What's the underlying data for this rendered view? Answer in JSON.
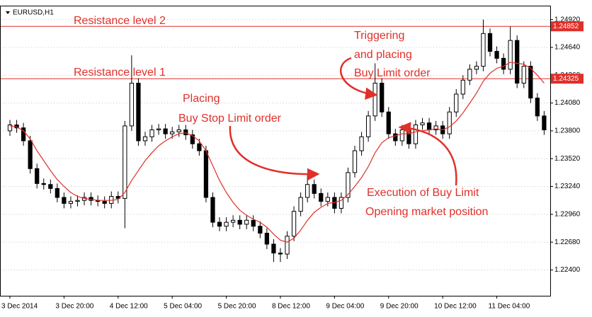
{
  "chart_data": {
    "type": "candlestick",
    "title": "EURUSD,H1",
    "categories": [
      "3 Dec 2014",
      null,
      null,
      null,
      null,
      null,
      null,
      null,
      "3 Dec 20:00",
      null,
      null,
      null,
      null,
      null,
      null,
      null,
      "4 Dec 12:00",
      null,
      null,
      null,
      null,
      null,
      null,
      null,
      "5 Dec 04:00",
      null,
      null,
      null,
      null,
      null,
      null,
      null,
      "5 Dec 20:00",
      null,
      null,
      null,
      null,
      null,
      null,
      null,
      "8 Dec 12:00",
      null,
      null,
      null,
      null,
      null,
      null,
      null,
      "9 Dec 04:00",
      null,
      null,
      null,
      null,
      null,
      null,
      null,
      "9 Dec 20:00",
      null,
      null,
      null,
      null,
      null,
      null,
      null,
      "10 Dec 12:00",
      null,
      null,
      null,
      null,
      null,
      null,
      null,
      "11 Dec 04:00",
      null,
      null,
      null,
      null,
      null,
      null,
      null
    ],
    "open": [
      1.238,
      1.2386,
      1.2383,
      1.237,
      1.2342,
      1.2327,
      1.2326,
      1.2322,
      1.2313,
      1.2307,
      1.2309,
      1.231,
      1.2313,
      1.231,
      1.2309,
      1.2307,
      1.2314,
      1.2312,
      1.2385,
      1.2428,
      1.237,
      1.2374,
      1.2381,
      1.2382,
      1.2377,
      1.2379,
      1.2381,
      1.2376,
      1.2367,
      1.236,
      1.2313,
      1.2288,
      1.2284,
      1.2288,
      1.229,
      1.2286,
      1.229,
      1.2284,
      1.2277,
      1.2266,
      1.2257,
      1.2256,
      1.2274,
      1.2299,
      1.2313,
      1.2326,
      1.2317,
      1.2309,
      1.2313,
      1.2302,
      1.2313,
      1.2338,
      1.236,
      1.2374,
      1.2395,
      1.2428,
      1.2399,
      1.2377,
      1.237,
      1.2381,
      1.2367,
      1.2386,
      1.2388,
      1.2381,
      1.2385,
      1.2377,
      1.2399,
      1.2417,
      1.2431,
      1.2442,
      1.2445,
      1.2478,
      1.246,
      1.2453,
      1.2442,
      1.2471,
      1.2428,
      1.2445,
      1.2413,
      1.2395
    ],
    "high": [
      1.2391,
      1.2391,
      1.2388,
      1.2375,
      1.2347,
      1.2332,
      1.2331,
      1.2327,
      1.2318,
      1.2314,
      1.2315,
      1.2318,
      1.2318,
      1.2315,
      1.2314,
      1.2319,
      1.2319,
      1.239,
      1.2456,
      1.2433,
      1.2379,
      1.2386,
      1.2387,
      1.2387,
      1.2384,
      1.2386,
      1.2386,
      1.2381,
      1.2372,
      1.2365,
      1.2318,
      1.2293,
      1.2293,
      1.2295,
      1.2295,
      1.2295,
      1.2295,
      1.2289,
      1.2282,
      1.2271,
      1.2262,
      1.2279,
      1.2304,
      1.2318,
      1.2336,
      1.2331,
      1.2322,
      1.2318,
      1.2318,
      1.2318,
      1.2343,
      1.2365,
      1.2379,
      1.24,
      1.2448,
      1.2433,
      1.2404,
      1.2382,
      1.2386,
      1.2386,
      1.2391,
      1.2393,
      1.2393,
      1.239,
      1.239,
      1.2404,
      1.2422,
      1.2436,
      1.2447,
      1.245,
      1.2492,
      1.2483,
      1.2465,
      1.2458,
      1.2485,
      1.2476,
      1.245,
      1.245,
      1.2418,
      1.24
    ],
    "low": [
      1.2375,
      1.2378,
      1.2365,
      1.2337,
      1.2322,
      1.2321,
      1.2317,
      1.2308,
      1.2302,
      1.2302,
      1.2304,
      1.2305,
      1.2305,
      1.2304,
      1.2302,
      1.2302,
      1.2307,
      1.2282,
      1.238,
      1.2365,
      1.2365,
      1.2369,
      1.2376,
      1.2372,
      1.2372,
      1.2374,
      1.2371,
      1.2362,
      1.2355,
      1.2308,
      1.2283,
      1.2279,
      1.2279,
      1.2283,
      1.2281,
      1.2281,
      1.2279,
      1.2272,
      1.2261,
      1.2248,
      1.2248,
      1.2251,
      1.2269,
      1.2294,
      1.2308,
      1.2312,
      1.2304,
      1.2304,
      1.2297,
      1.2297,
      1.2308,
      1.2333,
      1.2355,
      1.2369,
      1.239,
      1.2394,
      1.2372,
      1.2365,
      1.2365,
      1.2362,
      1.2362,
      1.2381,
      1.2376,
      1.2376,
      1.2372,
      1.2372,
      1.2394,
      1.2412,
      1.2426,
      1.2437,
      1.244,
      1.2455,
      1.2448,
      1.2437,
      1.2437,
      1.2423,
      1.2423,
      1.2408,
      1.239,
      1.2376
    ],
    "close": [
      1.2386,
      1.2383,
      1.237,
      1.2342,
      1.2327,
      1.2326,
      1.2322,
      1.2313,
      1.2307,
      1.2309,
      1.231,
      1.2313,
      1.231,
      1.2309,
      1.2307,
      1.2314,
      1.2312,
      1.2385,
      1.2428,
      1.237,
      1.2374,
      1.2381,
      1.2382,
      1.2377,
      1.2379,
      1.2381,
      1.2376,
      1.2367,
      1.236,
      1.2313,
      1.2288,
      1.2284,
      1.2288,
      1.229,
      1.2286,
      1.229,
      1.2284,
      1.2277,
      1.2266,
      1.2257,
      1.2256,
      1.2274,
      1.2299,
      1.2313,
      1.2326,
      1.2317,
      1.2309,
      1.2313,
      1.2302,
      1.2313,
      1.2338,
      1.236,
      1.2374,
      1.2395,
      1.2428,
      1.2399,
      1.2377,
      1.237,
      1.2381,
      1.2367,
      1.2386,
      1.2388,
      1.2381,
      1.2385,
      1.2377,
      1.2399,
      1.2417,
      1.2431,
      1.2442,
      1.2445,
      1.2478,
      1.246,
      1.2453,
      1.2442,
      1.2471,
      1.2428,
      1.2445,
      1.2413,
      1.2395,
      1.2381
    ],
    "moving_average": {
      "color": "#e0302a",
      "values": [
        1.2385,
        1.2384,
        1.238,
        1.2372,
        1.236,
        1.235,
        1.234,
        1.2331,
        1.2324,
        1.2318,
        1.2314,
        1.2312,
        1.2311,
        1.231,
        1.231,
        1.231,
        1.2311,
        1.2318,
        1.233,
        1.234,
        1.235,
        1.2358,
        1.2365,
        1.237,
        1.2374,
        1.2377,
        1.2378,
        1.2375,
        1.237,
        1.236,
        1.2345,
        1.233,
        1.2318,
        1.2308,
        1.23,
        1.2295,
        1.2291,
        1.2288,
        1.2283,
        1.2276,
        1.227,
        1.2268,
        1.2272,
        1.228,
        1.229,
        1.2298,
        1.2303,
        1.2307,
        1.2308,
        1.231,
        1.2316,
        1.2324,
        1.2333,
        1.2344,
        1.2358,
        1.2368,
        1.2373,
        1.2375,
        1.2377,
        1.2377,
        1.2379,
        1.238,
        1.2381,
        1.2382,
        1.2381,
        1.2384,
        1.239,
        1.2398,
        1.2408,
        1.2418,
        1.243,
        1.2438,
        1.2443,
        1.2445,
        1.2449,
        1.2448,
        1.2447,
        1.2443,
        1.2436,
        1.2428
      ]
    },
    "color": "#000000",
    "ylim": [
      1.2214,
      1.2506
    ],
    "yticks": [
      {
        "value": 1.224,
        "label": "1.22400"
      },
      {
        "value": 1.2268,
        "label": "1.22680"
      },
      {
        "value": 1.2296,
        "label": "1.22960"
      },
      {
        "value": 1.2324,
        "label": "1.23240"
      },
      {
        "value": 1.2352,
        "label": "1.23520"
      },
      {
        "value": 1.238,
        "label": "1.23800"
      },
      {
        "value": 1.2408,
        "label": "1.24080"
      },
      {
        "value": 1.2436,
        "label": "1.24360"
      },
      {
        "value": 1.2464,
        "label": "1.24640"
      },
      {
        "value": 1.2492,
        "label": "1.24920"
      }
    ],
    "grid": true,
    "levels": [
      {
        "value": 1.24852,
        "label": "1.24852",
        "color": "#e0302a"
      },
      {
        "value": 1.24325,
        "label": "1.24325",
        "color": "#e0302a"
      }
    ],
    "annotations": [
      {
        "lines": [
          "Resistance level 2"
        ]
      },
      {
        "lines": [
          "Resistance level 1"
        ]
      },
      {
        "lines": [
          "Placing",
          "Buy Stop Limit order"
        ]
      },
      {
        "lines": [
          "Triggering",
          "and placing",
          "Buy Limit order"
        ]
      },
      {
        "lines": [
          "Execution of Buy Limit",
          "Opening market position"
        ]
      }
    ]
  }
}
